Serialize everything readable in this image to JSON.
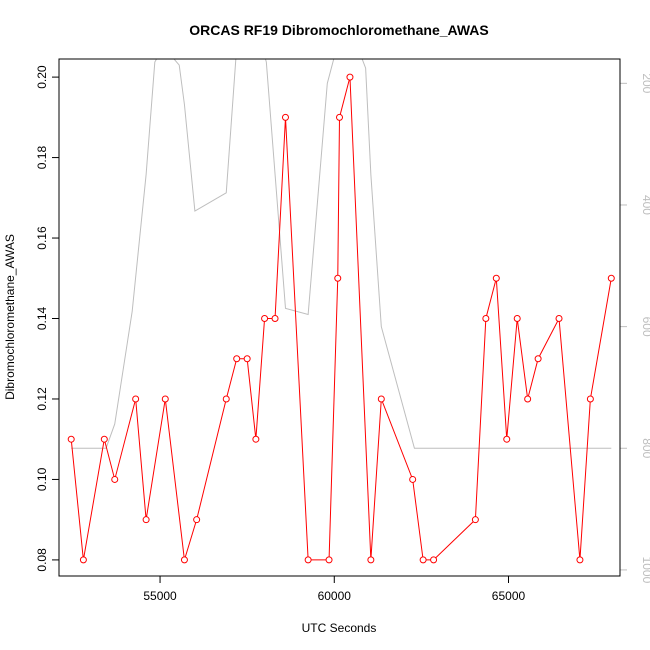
{
  "chart_data": {
    "type": "line",
    "title": "ORCAS RF19 Dibromochloromethane_AWAS",
    "xlabel": "UTC Seconds",
    "ylabel": "Dibromochloromethane_AWAS",
    "xlim": [
      52100,
      68200
    ],
    "ylim": [
      0.076,
      0.2045
    ],
    "x_ticks": [
      55000,
      60000,
      65000
    ],
    "x_tick_labels": [
      "55000",
      "60000",
      "65000"
    ],
    "y_ticks": [
      0.08,
      0.1,
      0.12,
      0.14,
      0.16,
      0.18,
      0.2
    ],
    "y_tick_labels": [
      "0.08",
      "0.10",
      "0.12",
      "0.14",
      "0.16",
      "0.18",
      "0.20"
    ],
    "y2_reversed": true,
    "y2lim": [
      1010,
      160
    ],
    "y2_ticks": [
      200,
      400,
      600,
      800,
      1000
    ],
    "y2_tick_labels": [
      "200",
      "400",
      "600",
      "800",
      "1000"
    ],
    "grid": false,
    "colors": {
      "primary": "#ff0000",
      "secondary": "#bebebe",
      "axis": "#000000"
    },
    "series": [
      {
        "color": "#ff0000",
        "marker": "open-circle",
        "axis": "left",
        "x": [
          52450,
          52800,
          53400,
          53700,
          54300,
          54600,
          55150,
          55700,
          56050,
          56900,
          57200,
          57500,
          57750,
          58000,
          58300,
          58600,
          59250,
          59850,
          60100,
          60150,
          60450,
          61050,
          61350,
          62250,
          62550,
          62850,
          64050,
          64350,
          64650,
          64950,
          65250,
          65550,
          65850,
          66450,
          67050,
          67350,
          67950
        ],
        "y": [
          0.11,
          0.08,
          0.11,
          0.1,
          0.12,
          0.09,
          0.12,
          0.08,
          0.09,
          0.12,
          0.13,
          0.13,
          0.11,
          0.14,
          0.14,
          0.19,
          0.08,
          0.08,
          0.15,
          0.19,
          0.2,
          0.08,
          0.12,
          0.1,
          0.08,
          0.08,
          0.09,
          0.14,
          0.15,
          0.11,
          0.14,
          0.12,
          0.13,
          0.14,
          0.08,
          0.12,
          0.15
        ]
      },
      {
        "color": "#bebebe",
        "marker": "none",
        "axis": "right",
        "x": [
          52450,
          53450,
          53700,
          54200,
          54600,
          54850,
          55100,
          55550,
          55700,
          56000,
          56900,
          57200,
          57500,
          57800,
          58050,
          58600,
          59250,
          59800,
          60100,
          60600,
          60900,
          61050,
          61350,
          62300,
          62600,
          64000,
          66000,
          67950
        ],
        "y": [
          800,
          800,
          760,
          575,
          350,
          165,
          140,
          170,
          235,
          410,
          380,
          140,
          110,
          115,
          165,
          570,
          580,
          200,
          135,
          130,
          175,
          350,
          600,
          800,
          800,
          800,
          800,
          800
        ]
      }
    ]
  }
}
